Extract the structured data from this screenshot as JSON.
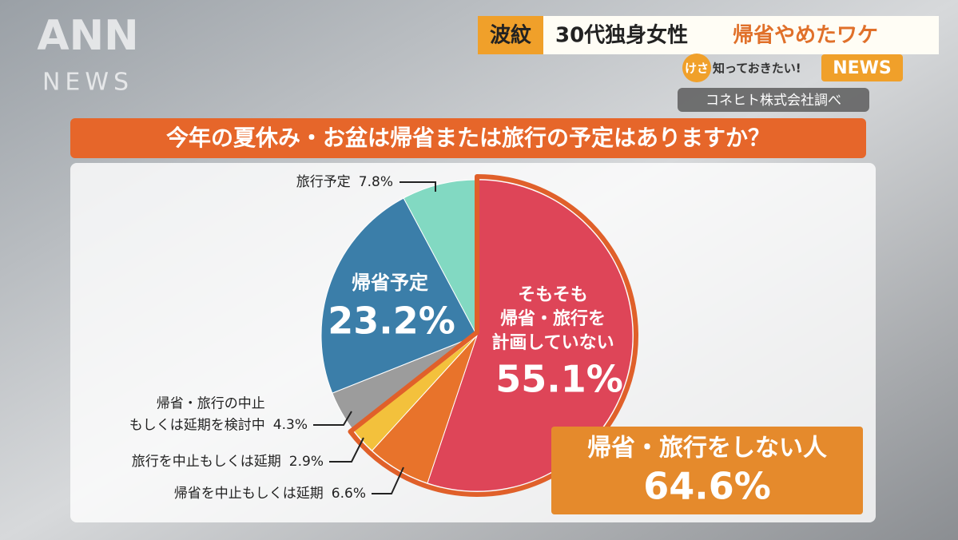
{
  "broadcast": {
    "logo": "ANN",
    "logo_sub": "NEWS",
    "tag": "波紋",
    "headline": "30代独身女性",
    "headline_accent": "帰省やめたワケ",
    "program_badge": "けさ",
    "program": "知っておきたい!",
    "program_news": "NEWS",
    "source": "コネヒト株式会社調べ"
  },
  "chart_data": {
    "type": "pie",
    "title": "今年の夏休み・お盆は帰省または旅行の予定はありますか？",
    "categories": [
      "そもそも\n帰省・旅行を\n計画していない",
      "帰省を中止もしくは延期",
      "旅行を中止もしくは延期",
      "帰省・旅行の中止\nもしくは延期を検討中",
      "帰省予定",
      "旅行予定"
    ],
    "values": [
      55.1,
      6.6,
      2.9,
      4.3,
      23.2,
      7.8
    ],
    "value_labels": [
      "55.1%",
      "6.6%",
      "2.9%",
      "4.3%",
      "23.2%",
      "7.8%"
    ],
    "colors": [
      "#de4558",
      "#e8732b",
      "#f3c13c",
      "#9c9c9c",
      "#3b7ea9",
      "#82d9c2"
    ],
    "annotation": {
      "text": "帰省・旅行をしない人",
      "value": 64.6,
      "label": "64.6%"
    }
  }
}
